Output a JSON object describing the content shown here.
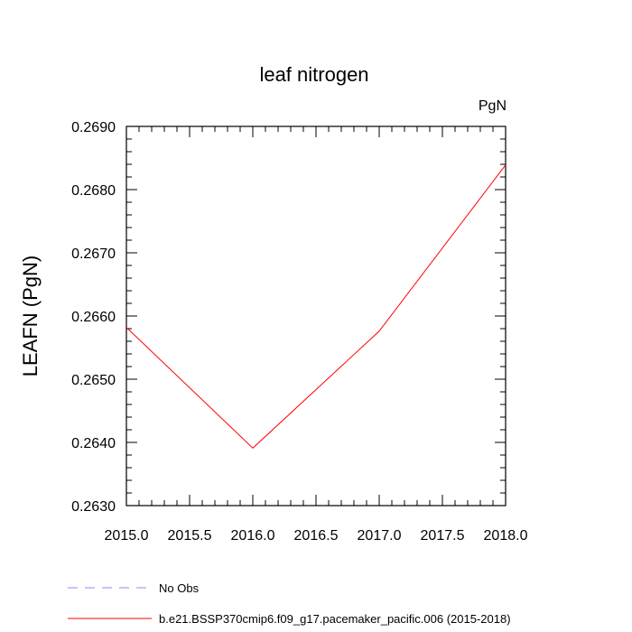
{
  "chart_data": {
    "type": "line",
    "title": "leaf nitrogen",
    "units_label": "PgN",
    "ylabel": "LEAFN  (PgN)",
    "xlabel": "",
    "xlim": [
      2015.0,
      2018.0
    ],
    "ylim": [
      0.263,
      0.269
    ],
    "x_ticks": [
      2015.0,
      2015.5,
      2016.0,
      2016.5,
      2017.0,
      2017.5,
      2018.0
    ],
    "x_tick_labels": [
      "2015.0",
      "2015.5",
      "2016.0",
      "2016.5",
      "2017.0",
      "2017.5",
      "2018.0"
    ],
    "y_ticks": [
      0.263,
      0.264,
      0.265,
      0.266,
      0.267,
      0.268,
      0.269
    ],
    "y_tick_labels": [
      "0.2630",
      "0.2640",
      "0.2650",
      "0.2660",
      "0.2670",
      "0.2680",
      "0.2690"
    ],
    "grid": false,
    "legend_position": "bottom",
    "series": [
      {
        "name": "No Obs",
        "color": "#8a8aff",
        "dash": "dashed",
        "x": [],
        "y": []
      },
      {
        "name": "b.e21.BSSP370cmip6.f09_g17.pacemaker_pacific.006 (2015-2018)",
        "color": "#ff0000",
        "dash": "solid",
        "x": [
          2015,
          2016,
          2017,
          2018
        ],
        "y": [
          0.26582,
          0.26391,
          0.26576,
          0.26839
        ]
      }
    ]
  }
}
